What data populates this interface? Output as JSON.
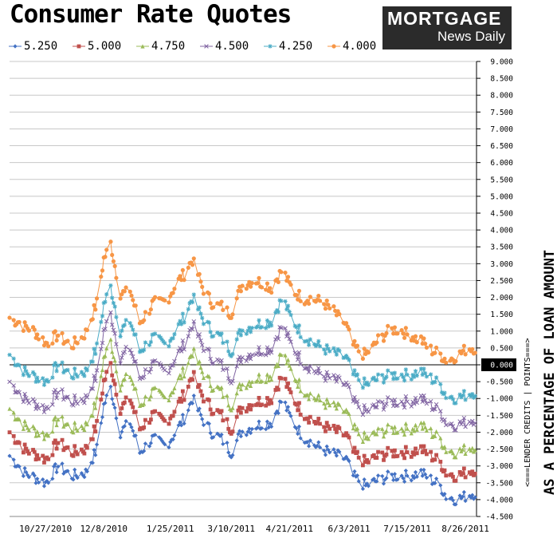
{
  "chart_data": {
    "type": "line",
    "title": "Consumer Rate Quotes",
    "logo": {
      "line1": "MORTGAGE",
      "line2": "News Daily"
    },
    "ylabel": "AS A PERCENTAGE OF LOAN AMOUNT",
    "ylabel_secondary": "<===LENDER CREDITS | POINTS===>",
    "ylim": [
      -4.5,
      9.0
    ],
    "yticks": [
      "9.000",
      "8.500",
      "8.000",
      "7.500",
      "7.000",
      "6.500",
      "6.000",
      "5.500",
      "5.000",
      "4.500",
      "4.000",
      "3.500",
      "3.000",
      "2.500",
      "2.000",
      "1.500",
      "1.000",
      "0.500",
      "0.000",
      "-0.500",
      "-1.000",
      "-1.500",
      "-2.000",
      "-2.500",
      "-3.000",
      "-3.500",
      "-4.000",
      "-4.500"
    ],
    "highlight_tick": "0.000",
    "xticks": [
      "10/27/2010",
      "12/8/2010",
      "1/25/2011",
      "3/10/2011",
      "4/21/2011",
      "6/3/2011",
      "7/15/2011",
      "8/26/2011"
    ],
    "xlim": [
      "2010-10-01",
      "2011-09-03"
    ],
    "grid": true,
    "legend_position": "top",
    "base_anchors": [
      [
        "2010-10-01",
        -2.7
      ],
      [
        "2010-10-12",
        -3.2
      ],
      [
        "2010-10-27",
        -3.5
      ],
      [
        "2010-11-05",
        -3.0
      ],
      [
        "2010-11-15",
        -3.3
      ],
      [
        "2010-11-25",
        -3.2
      ],
      [
        "2010-12-03",
        -2.5
      ],
      [
        "2010-12-08",
        -1.2
      ],
      [
        "2010-12-13",
        -0.7
      ],
      [
        "2010-12-20",
        -2.0
      ],
      [
        "2010-12-27",
        -1.7
      ],
      [
        "2011-01-03",
        -2.6
      ],
      [
        "2011-01-12",
        -2.2
      ],
      [
        "2011-01-22",
        -2.4
      ],
      [
        "2011-01-29",
        -2.0
      ],
      [
        "2011-02-05",
        -1.5
      ],
      [
        "2011-02-10",
        -1.0
      ],
      [
        "2011-02-17",
        -1.6
      ],
      [
        "2011-02-24",
        -2.0
      ],
      [
        "2011-03-03",
        -2.2
      ],
      [
        "2011-03-10",
        -2.6
      ],
      [
        "2011-03-17",
        -2.0
      ],
      [
        "2011-03-28",
        -1.8
      ],
      [
        "2011-04-08",
        -1.7
      ],
      [
        "2011-04-16",
        -1.0
      ],
      [
        "2011-04-21",
        -1.5
      ],
      [
        "2011-04-30",
        -2.1
      ],
      [
        "2011-05-10",
        -2.4
      ],
      [
        "2011-05-20",
        -2.6
      ],
      [
        "2011-06-01",
        -2.8
      ],
      [
        "2011-06-06",
        -3.3
      ],
      [
        "2011-06-15",
        -3.6
      ],
      [
        "2011-06-25",
        -3.4
      ],
      [
        "2011-07-05",
        -3.3
      ],
      [
        "2011-07-15",
        -3.3
      ],
      [
        "2011-07-25",
        -3.2
      ],
      [
        "2011-08-01",
        -3.4
      ],
      [
        "2011-08-08",
        -3.6
      ],
      [
        "2011-08-12",
        -3.9
      ],
      [
        "2011-08-20",
        -4.0
      ],
      [
        "2011-08-26",
        -3.9
      ],
      [
        "2011-09-02",
        -3.8
      ]
    ],
    "series": [
      {
        "name": "5.250",
        "color": "#4472C4",
        "marker": "diamond",
        "offset": 0
      },
      {
        "name": "5.000",
        "color": "#C0504D",
        "marker": "square",
        "offset": 0.7
      },
      {
        "name": "4.750",
        "color": "#9BBB59",
        "marker": "triangle",
        "offset": 1.4
      },
      {
        "name": "4.500",
        "color": "#8064A2",
        "marker": "x",
        "offset": 2.2
      },
      {
        "name": "4.250",
        "color": "#4BACC6",
        "marker": "star",
        "offset": 3.0
      },
      {
        "name": "4.000",
        "color": "#F79646",
        "marker": "circle",
        "offset": 4.1
      }
    ]
  }
}
